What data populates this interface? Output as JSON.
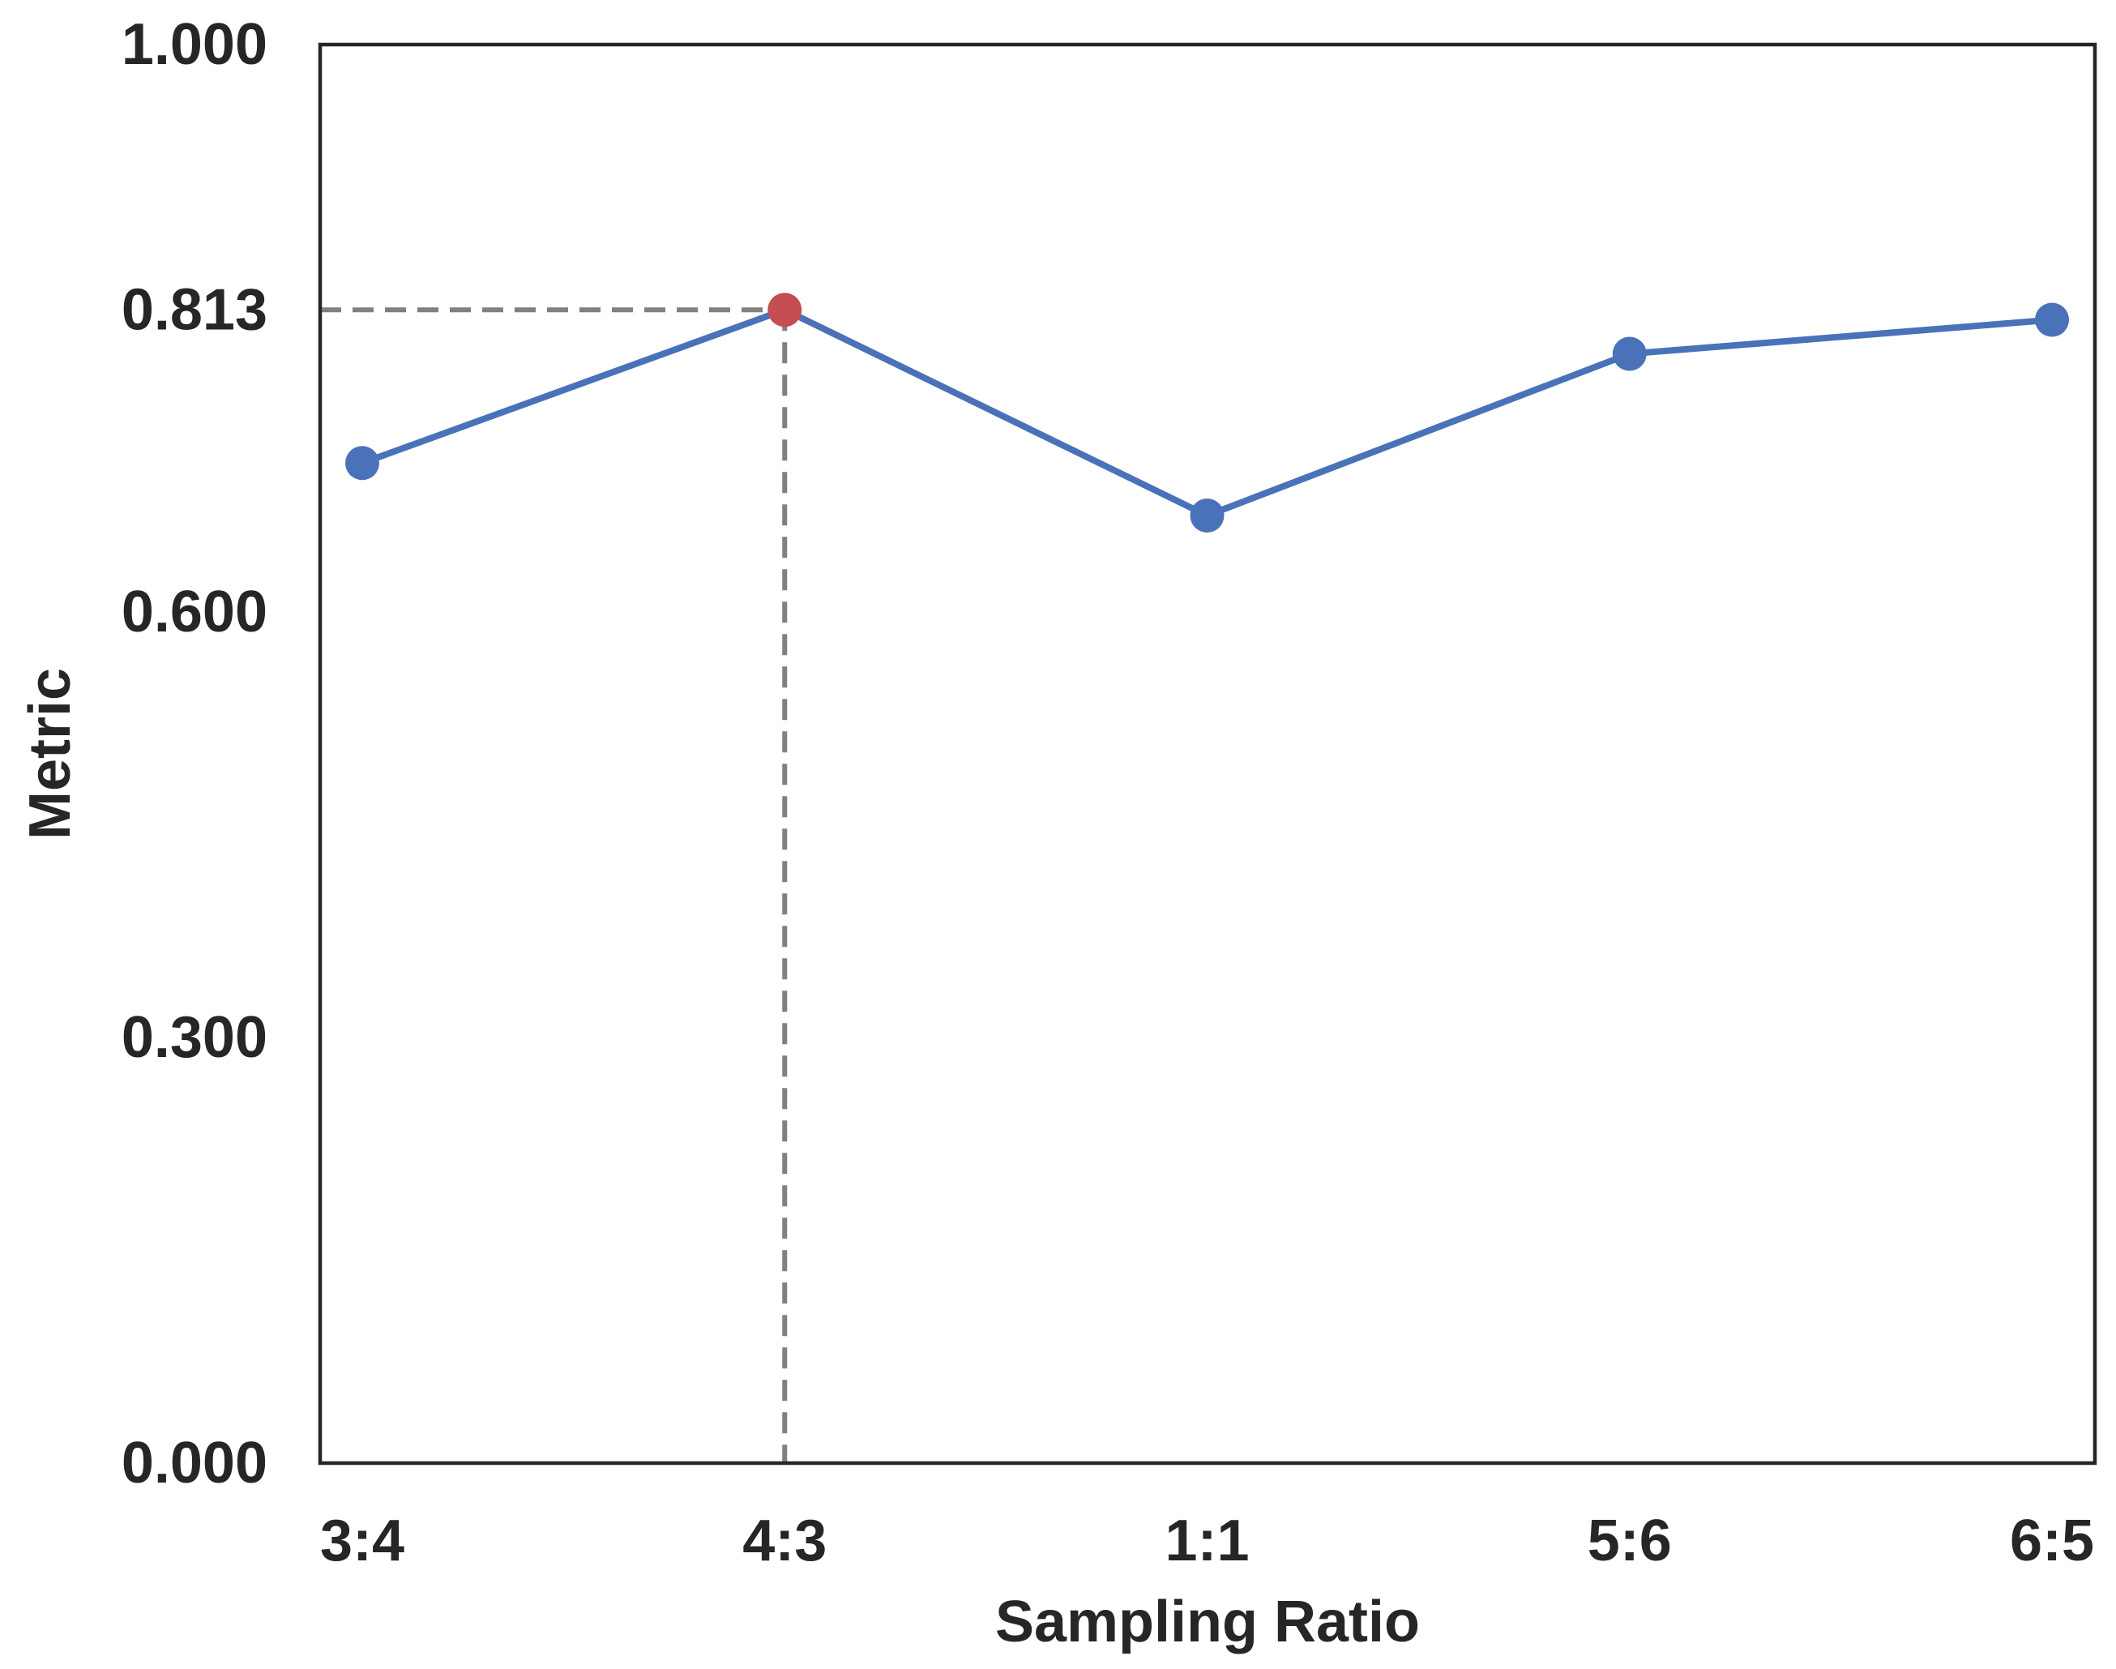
{
  "chart_data": {
    "type": "line",
    "title": "",
    "xlabel": "Sampling Ratio",
    "ylabel": "Metric",
    "categories": [
      "3:4",
      "4:3",
      "1:1",
      "5:6",
      "6:5"
    ],
    "series": [
      {
        "name": "Metric",
        "values": [
          0.705,
          0.813,
          0.668,
          0.782,
          0.806
        ],
        "color": "#4a72b8"
      }
    ],
    "yticks": [
      0.0,
      0.3,
      0.6,
      0.813,
      1.0
    ],
    "ytick_labels": [
      "0.000",
      "0.300",
      "0.600",
      "0.813",
      "1.000"
    ],
    "ylim": [
      0,
      1.0
    ],
    "highlight": {
      "category": "4:3",
      "value": 0.813,
      "color": "#c44e52",
      "guide_color": "#808080"
    },
    "grid": false,
    "legend": "none"
  }
}
